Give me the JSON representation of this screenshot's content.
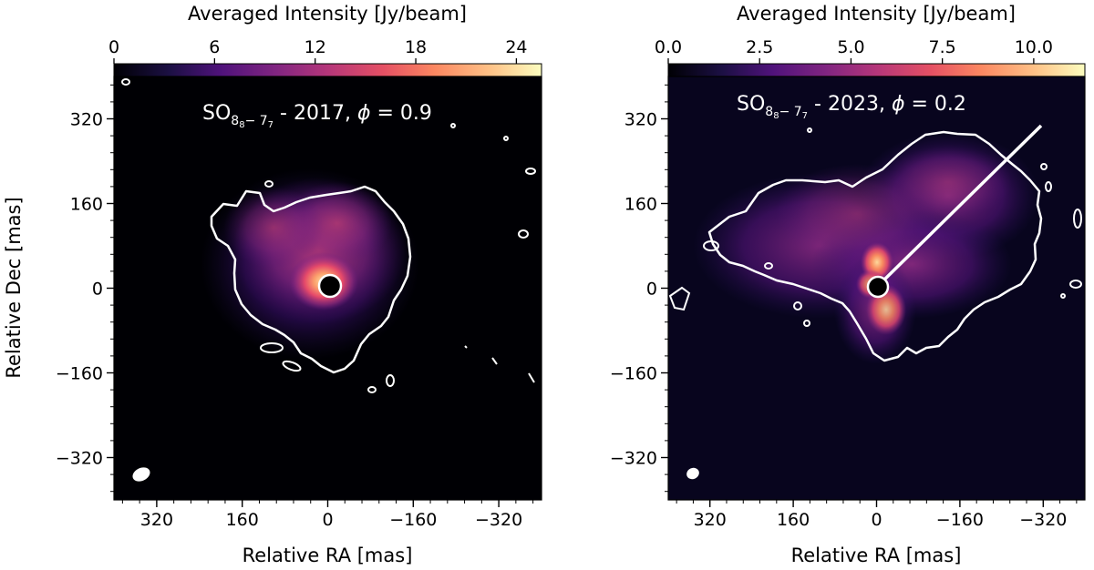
{
  "chart_data": [
    {
      "type": "heatmap",
      "colormap": "magma",
      "colorbar": {
        "label": "Averaged Intensity [Jy/beam]",
        "position": "top",
        "ticks": [
          "0",
          "6",
          "12",
          "18",
          "24"
        ],
        "range": [
          0,
          25.5
        ]
      },
      "title_main": "SO",
      "title_sub": "8",
      "title_sub2": "8",
      "title_sub_dash": "− 7",
      "title_sub3": "7",
      "title_rest": " - 2017, ",
      "title_phi": "ϕ",
      "title_phi_value": " = 0.9",
      "xlabel": "Relative RA [mas]",
      "ylabel": "Relative Dec [mas]",
      "xticks": [
        "320",
        "160",
        "0",
        "−160",
        "−320"
      ],
      "yticks": [
        "320",
        "160",
        "0",
        "−160",
        "−320"
      ],
      "xlim": [
        400,
        -400
      ],
      "ylim": [
        -400,
        400
      ],
      "contour": true,
      "beam": true,
      "line_annotation": false
    },
    {
      "type": "heatmap",
      "colormap": "magma",
      "colorbar": {
        "label": "Averaged Intensity [Jy/beam]",
        "position": "top",
        "ticks": [
          "0.0",
          "2.5",
          "5.0",
          "7.5",
          "10.0"
        ],
        "range": [
          0,
          11.4
        ]
      },
      "title_main": "SO",
      "title_sub": "8",
      "title_sub2": "8",
      "title_sub_dash": "− 7",
      "title_sub3": "7",
      "title_rest": " - 2023, ",
      "title_phi": "ϕ",
      "title_phi_value": " = 0.2",
      "xlabel": "Relative RA [mas]",
      "ylabel": "",
      "xticks": [
        "320",
        "160",
        "0",
        "−160",
        "−320"
      ],
      "yticks": [
        "320",
        "160",
        "0",
        "−160",
        "−320"
      ],
      "xlim": [
        400,
        -400
      ],
      "ylim": [
        -400,
        400
      ],
      "contour": true,
      "beam": true,
      "line_annotation": true
    }
  ],
  "colors": {
    "background": "#000004",
    "contour": "#ffffff"
  }
}
